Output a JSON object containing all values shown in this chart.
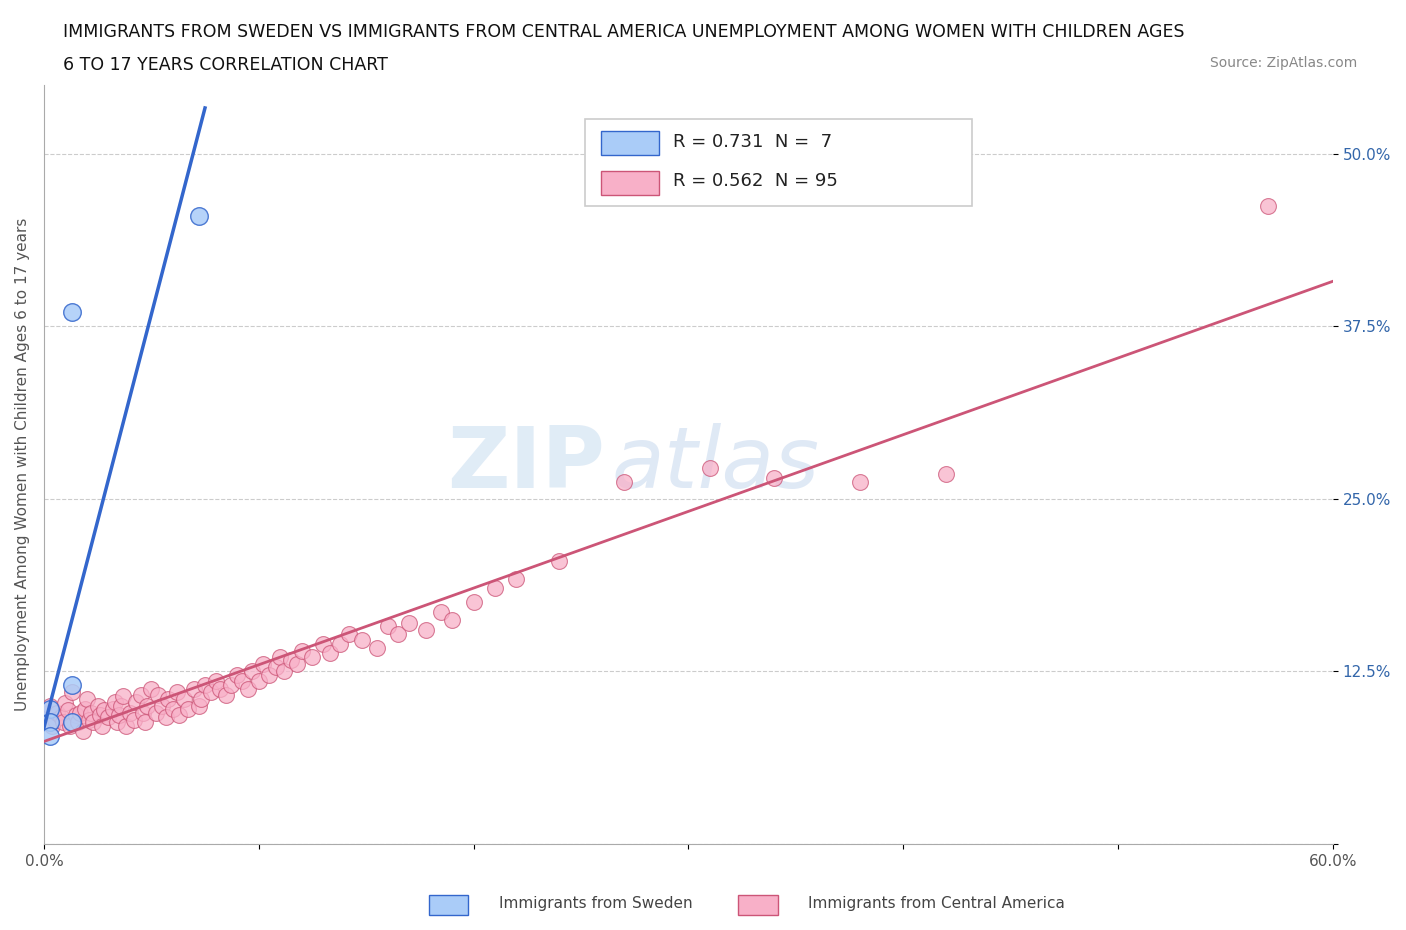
{
  "title_line1": "IMMIGRANTS FROM SWEDEN VS IMMIGRANTS FROM CENTRAL AMERICA UNEMPLOYMENT AMONG WOMEN WITH CHILDREN AGES",
  "title_line2": "6 TO 17 YEARS CORRELATION CHART",
  "source": "Source: ZipAtlas.com",
  "ylabel": "Unemployment Among Women with Children Ages 6 to 17 years",
  "xlim": [
    0.0,
    0.6
  ],
  "ylim": [
    0.0,
    0.55
  ],
  "xticks": [
    0.0,
    0.1,
    0.2,
    0.3,
    0.4,
    0.5,
    0.6
  ],
  "xticklabels": [
    "0.0%",
    "",
    "",
    "",
    "",
    "",
    "60.0%"
  ],
  "ytick_vals": [
    0.0,
    0.125,
    0.25,
    0.375,
    0.5
  ],
  "yticklabels": [
    "",
    "12.5%",
    "25.0%",
    "37.5%",
    "50.0%"
  ],
  "sweden_R": 0.731,
  "sweden_N": 7,
  "central_R": 0.562,
  "central_N": 95,
  "sweden_color": "#aaccf8",
  "central_color": "#f8b0c8",
  "sweden_line_color": "#3366cc",
  "central_line_color": "#cc5577",
  "background_color": "#ffffff",
  "grid_color": "#cccccc",
  "sweden_x": [
    0.003,
    0.003,
    0.003,
    0.013,
    0.013,
    0.013,
    0.072
  ],
  "sweden_y": [
    0.098,
    0.088,
    0.078,
    0.385,
    0.115,
    0.088,
    0.455
  ],
  "central_x": [
    0.002,
    0.003,
    0.004,
    0.005,
    0.006,
    0.008,
    0.009,
    0.01,
    0.011,
    0.012,
    0.013,
    0.015,
    0.016,
    0.017,
    0.018,
    0.019,
    0.02,
    0.021,
    0.022,
    0.023,
    0.025,
    0.026,
    0.027,
    0.028,
    0.03,
    0.032,
    0.033,
    0.034,
    0.035,
    0.036,
    0.037,
    0.038,
    0.04,
    0.042,
    0.043,
    0.045,
    0.046,
    0.047,
    0.048,
    0.05,
    0.052,
    0.053,
    0.055,
    0.057,
    0.058,
    0.06,
    0.062,
    0.063,
    0.065,
    0.067,
    0.07,
    0.072,
    0.073,
    0.075,
    0.078,
    0.08,
    0.082,
    0.085,
    0.087,
    0.09,
    0.092,
    0.095,
    0.097,
    0.1,
    0.102,
    0.105,
    0.108,
    0.11,
    0.112,
    0.115,
    0.118,
    0.12,
    0.125,
    0.13,
    0.133,
    0.138,
    0.142,
    0.148,
    0.155,
    0.16,
    0.165,
    0.17,
    0.178,
    0.185,
    0.19,
    0.2,
    0.21,
    0.22,
    0.24,
    0.27,
    0.31,
    0.34,
    0.38,
    0.42,
    0.57
  ],
  "central_y": [
    0.095,
    0.1,
    0.085,
    0.09,
    0.095,
    0.092,
    0.088,
    0.102,
    0.097,
    0.085,
    0.11,
    0.093,
    0.088,
    0.095,
    0.082,
    0.098,
    0.105,
    0.09,
    0.095,
    0.088,
    0.1,
    0.093,
    0.085,
    0.097,
    0.092,
    0.098,
    0.103,
    0.088,
    0.093,
    0.1,
    0.107,
    0.085,
    0.095,
    0.09,
    0.103,
    0.108,
    0.095,
    0.088,
    0.1,
    0.112,
    0.095,
    0.108,
    0.1,
    0.092,
    0.105,
    0.098,
    0.11,
    0.093,
    0.105,
    0.098,
    0.112,
    0.1,
    0.105,
    0.115,
    0.11,
    0.118,
    0.112,
    0.108,
    0.115,
    0.122,
    0.118,
    0.112,
    0.125,
    0.118,
    0.13,
    0.122,
    0.128,
    0.135,
    0.125,
    0.133,
    0.13,
    0.14,
    0.135,
    0.145,
    0.138,
    0.145,
    0.152,
    0.148,
    0.142,
    0.158,
    0.152,
    0.16,
    0.155,
    0.168,
    0.162,
    0.175,
    0.185,
    0.192,
    0.205,
    0.262,
    0.272,
    0.265,
    0.262,
    0.268,
    0.462
  ]
}
